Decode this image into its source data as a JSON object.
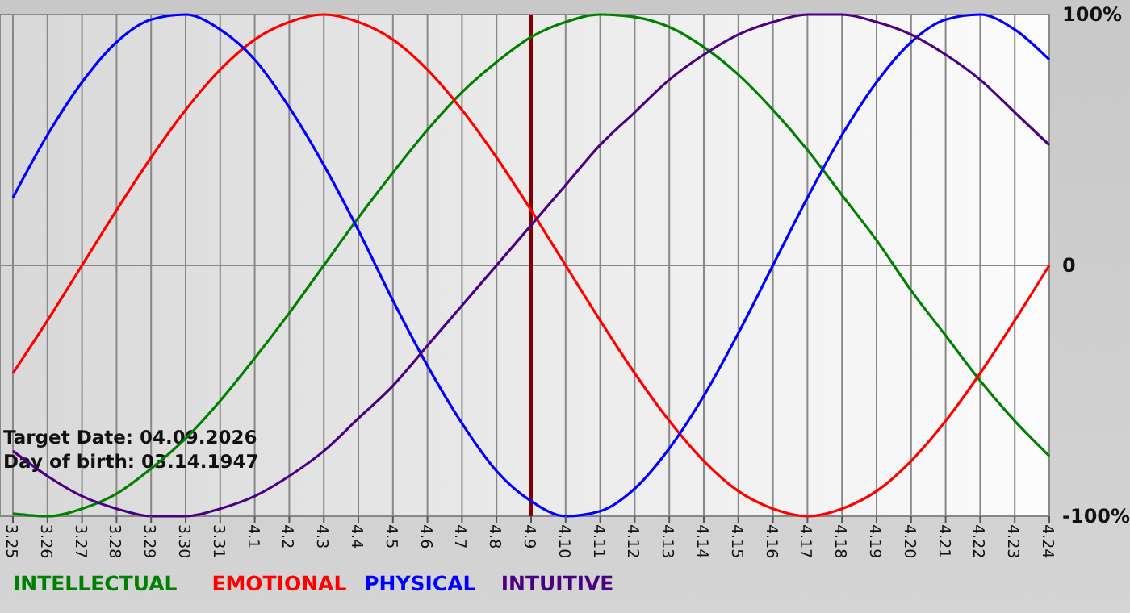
{
  "chart_data": {
    "type": "line",
    "categories": [
      "3.25",
      "3.26",
      "3.27",
      "3.28",
      "3.29",
      "3.30",
      "3.31",
      "4.1",
      "4.2",
      "4.3",
      "4.4",
      "4.5",
      "4.6",
      "4.7",
      "4.8",
      "4.9",
      "4.10",
      "4.11",
      "4.12",
      "4.13",
      "4.14",
      "4.15",
      "4.16",
      "4.17",
      "4.18",
      "4.19",
      "4.20",
      "4.21",
      "4.22",
      "4.23",
      "4.24"
    ],
    "series": [
      {
        "name": "INTELLECTUAL",
        "color": "#008000",
        "values": [
          -99,
          -100,
          -97,
          -91,
          -81,
          -69,
          -54,
          -37,
          -19,
          0,
          19,
          37,
          54,
          69,
          81,
          91,
          97,
          100,
          99,
          95,
          87,
          76,
          62,
          46,
          28,
          10,
          -10,
          -28,
          -46,
          -62,
          -76
        ]
      },
      {
        "name": "EMOTIONAL",
        "color": "#ff0000",
        "values": [
          -43,
          -22,
          0,
          22,
          43,
          62,
          78,
          90,
          97,
          100,
          97,
          90,
          78,
          62,
          43,
          22,
          0,
          -22,
          -43,
          -62,
          -78,
          -90,
          -97,
          -100,
          -97,
          -90,
          -78,
          -62,
          -43,
          -22,
          0
        ]
      },
      {
        "name": "PHYSICAL",
        "color": "#0000ff",
        "values": [
          27,
          52,
          73,
          89,
          98,
          100,
          94,
          82,
          63,
          40,
          14,
          -14,
          -40,
          -63,
          -82,
          -94,
          -100,
          -98,
          -89,
          -73,
          -52,
          -27,
          0,
          27,
          52,
          73,
          89,
          98,
          100,
          94,
          82
        ]
      },
      {
        "name": "INTUITIVE",
        "color": "#4b0082",
        "values": [
          -74,
          -84,
          -92,
          -97,
          -100,
          -100,
          -97,
          -92,
          -84,
          -74,
          -61,
          -48,
          -32,
          -16,
          0,
          16,
          32,
          48,
          61,
          74,
          84,
          92,
          97,
          100,
          100,
          97,
          92,
          84,
          74,
          61,
          48
        ]
      }
    ],
    "ylim": [
      -100,
      100
    ],
    "yticks": [
      {
        "value": 100,
        "label": "100%"
      },
      0,
      {
        "value": -100,
        "label": "-100%"
      }
    ],
    "grid": true,
    "legend": "bottom left",
    "marker": "none",
    "line_style": "solid",
    "ref_lines": [
      {
        "axis": "x",
        "value": "4.9",
        "color": "#800000"
      }
    ],
    "annotations": [
      "Target Date: 04.09.2026",
      "Day of birth: 03.14.1947"
    ]
  }
}
